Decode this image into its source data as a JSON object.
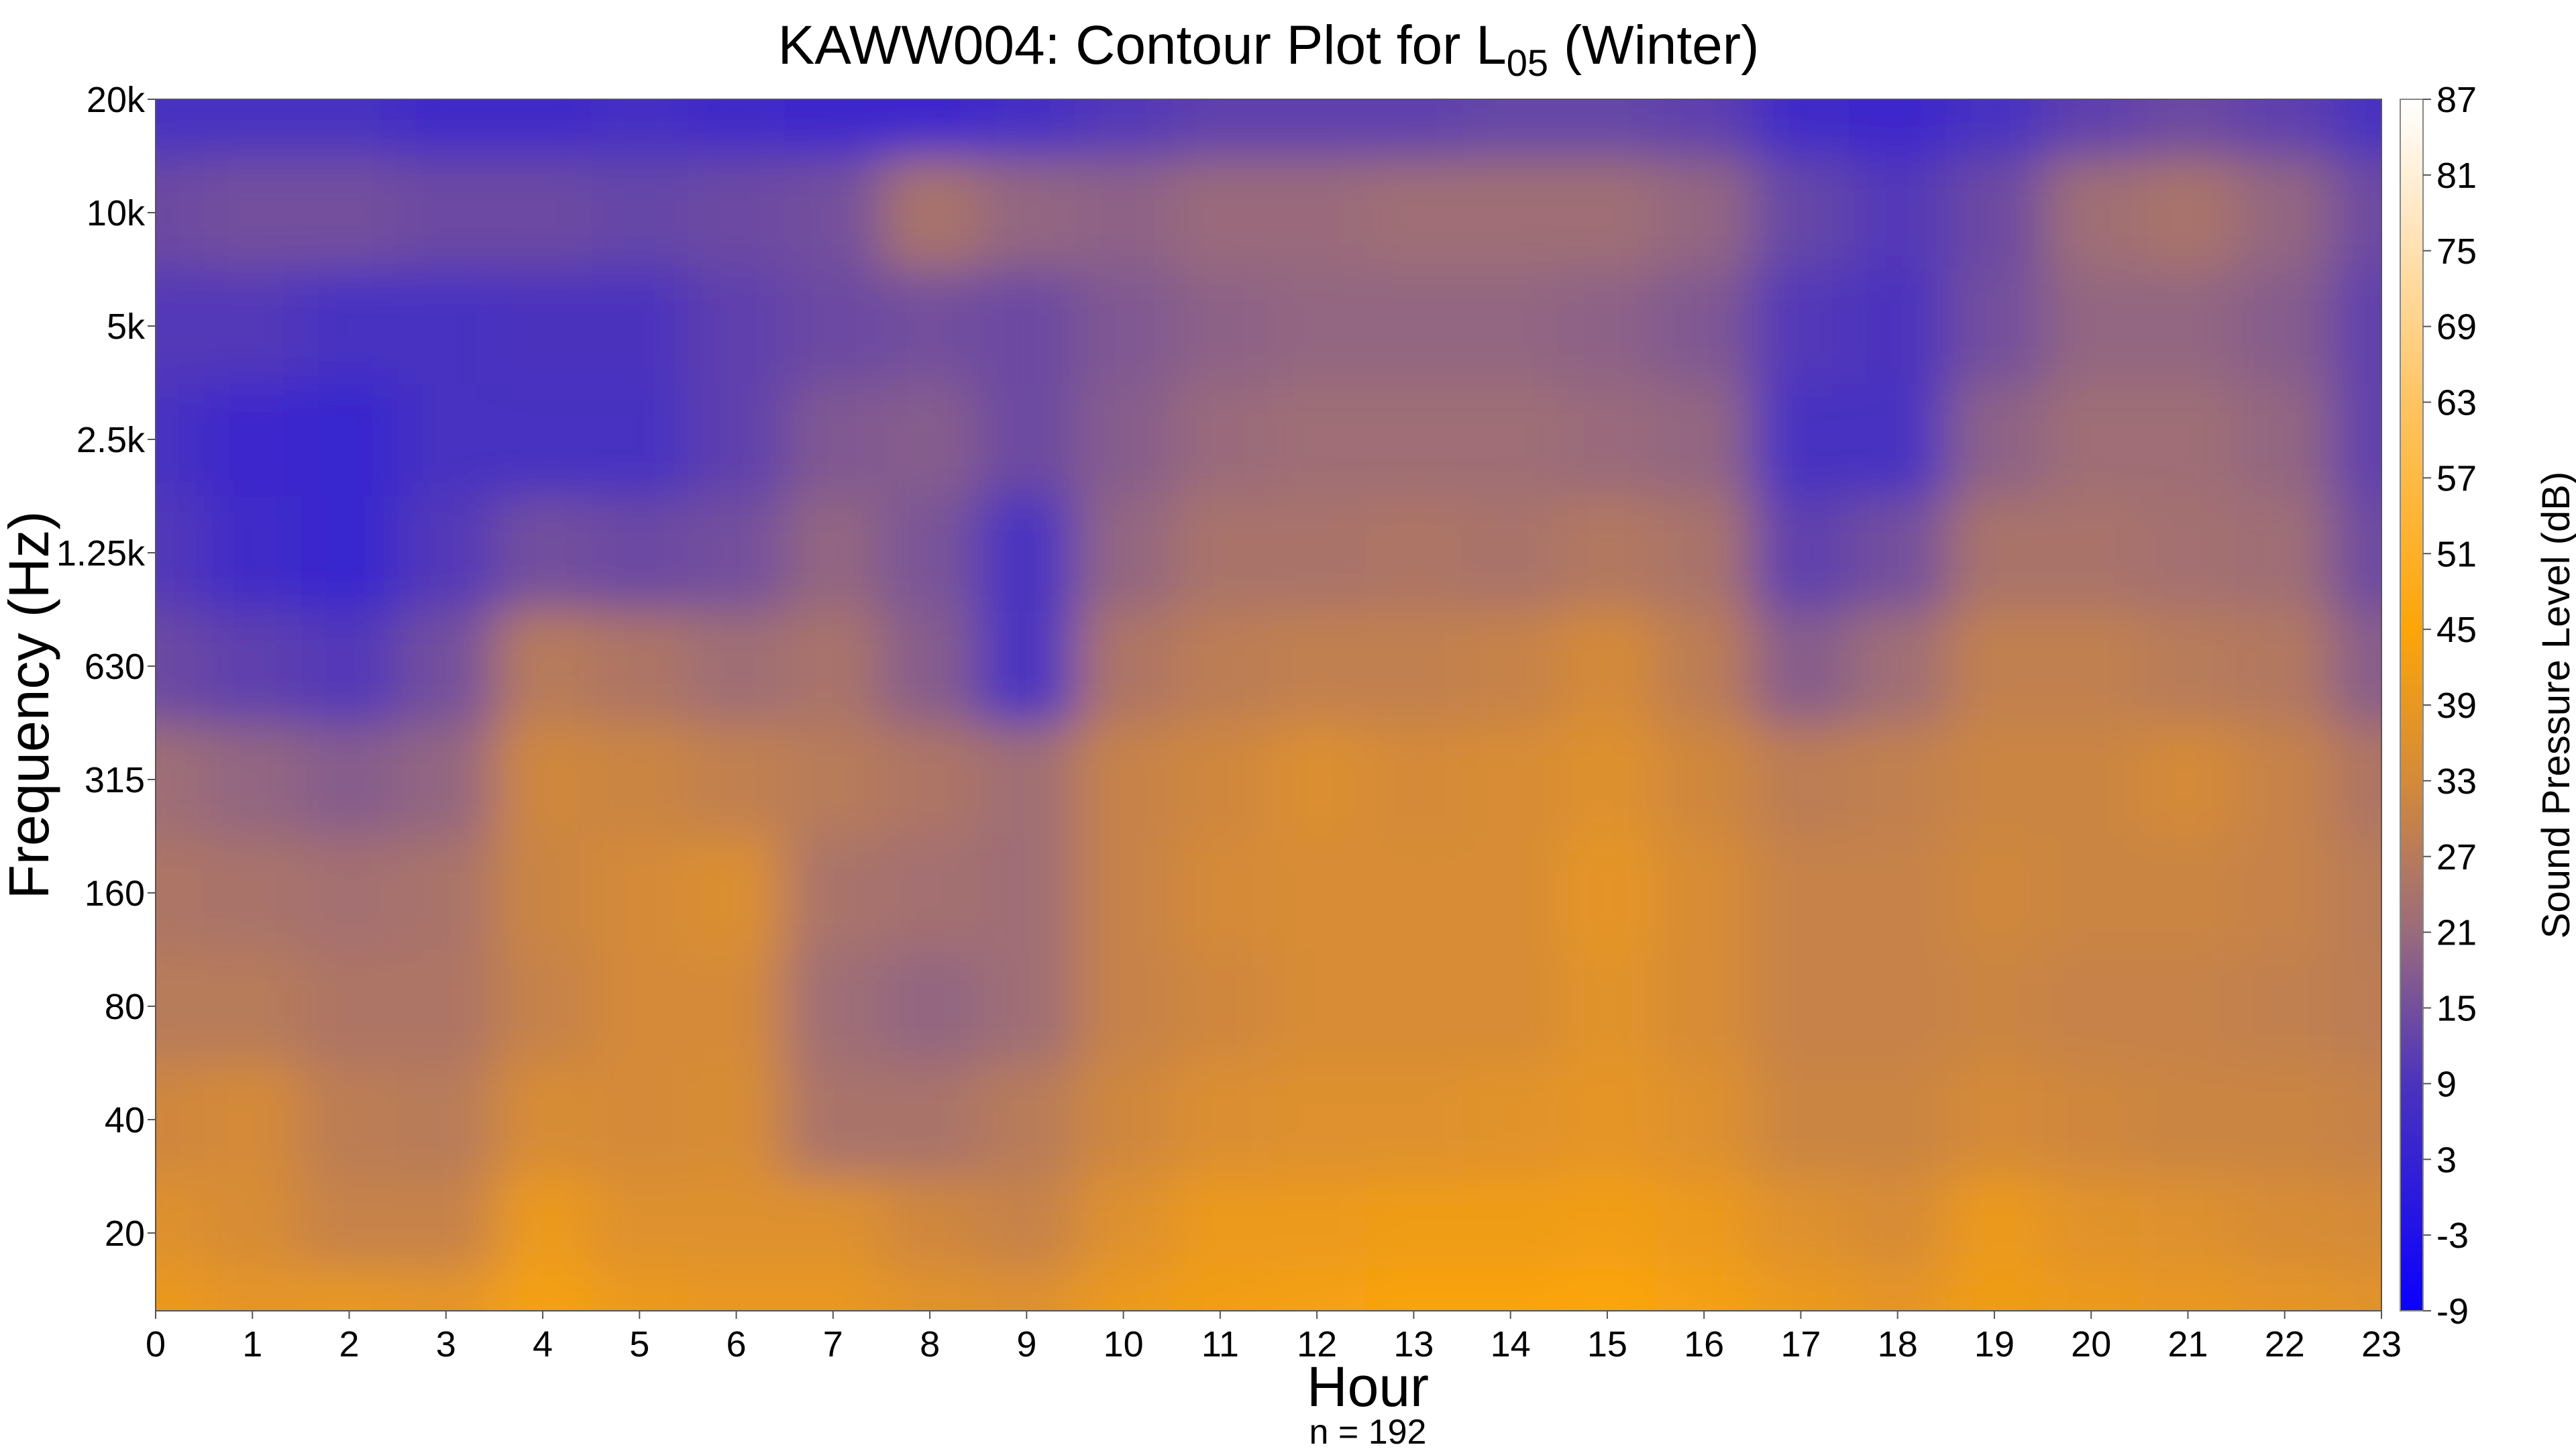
{
  "chart_data": {
    "type": "heatmap",
    "title": "KAWW004: Contour Plot for L",
    "title_subscript": "05",
    "title_suffix": " (Winter)",
    "xlabel": "Hour",
    "ylabel": "Frequency (Hz)",
    "note": "n = 192",
    "x": [
      0,
      1,
      2,
      3,
      4,
      5,
      6,
      7,
      8,
      9,
      10,
      11,
      12,
      13,
      14,
      15,
      16,
      17,
      18,
      19,
      20,
      21,
      22,
      23
    ],
    "xlim": [
      0,
      23
    ],
    "y_ticks": [
      {
        "label": "20",
        "value": 20
      },
      {
        "label": "40",
        "value": 40
      },
      {
        "label": "80",
        "value": 80
      },
      {
        "label": "160",
        "value": 160
      },
      {
        "label": "315",
        "value": 315
      },
      {
        "label": "630",
        "value": 630
      },
      {
        "label": "1.25k",
        "value": 1250
      },
      {
        "label": "2.5k",
        "value": 2500
      },
      {
        "label": "5k",
        "value": 5000
      },
      {
        "label": "10k",
        "value": 10000
      },
      {
        "label": "20k",
        "value": 20000
      }
    ],
    "y_scale": "log",
    "ylim": [
      10,
      20000
    ],
    "colorbar": {
      "label": "Sound Pressure Level (dB)",
      "min": -9,
      "max": 87,
      "ticks": [
        87,
        81,
        75,
        69,
        63,
        57,
        51,
        45,
        39,
        33,
        27,
        21,
        15,
        9,
        3,
        -3,
        -9
      ],
      "stops": [
        {
          "value": -9,
          "color": "#0a00ff"
        },
        {
          "value": 9,
          "color": "#4b33bd"
        },
        {
          "value": 21,
          "color": "#9a6b7c"
        },
        {
          "value": 33,
          "color": "#d48a38"
        },
        {
          "value": 45,
          "color": "#fca50a"
        },
        {
          "value": 63,
          "color": "#ffc462"
        },
        {
          "value": 75,
          "color": "#ffe0b0"
        },
        {
          "value": 87,
          "color": "#ffffff"
        }
      ]
    },
    "frequency_bands_hz": [
      12.5,
      20,
      40,
      80,
      160,
      315,
      630,
      1250,
      2500,
      5000,
      10000,
      20000
    ],
    "z_by_band": [
      [
        40,
        38,
        39,
        38,
        43,
        40,
        39,
        39,
        37,
        36,
        40,
        42,
        43,
        44,
        44,
        45,
        43,
        40,
        38,
        41,
        40,
        39,
        38,
        37
      ],
      [
        36,
        34,
        30,
        30,
        40,
        36,
        36,
        36,
        32,
        30,
        36,
        40,
        40,
        41,
        41,
        42,
        40,
        36,
        34,
        40,
        37,
        36,
        34,
        33
      ],
      [
        32,
        33,
        28,
        27,
        34,
        33,
        34,
        24,
        24,
        27,
        32,
        35,
        36,
        36,
        37,
        38,
        36,
        31,
        31,
        33,
        32,
        31,
        31,
        30
      ],
      [
        27,
        27,
        25,
        25,
        30,
        33,
        33,
        22,
        20,
        22,
        30,
        32,
        34,
        34,
        34,
        37,
        34,
        30,
        30,
        31,
        30,
        30,
        29,
        28
      ],
      [
        25,
        24,
        23,
        24,
        31,
        33,
        35,
        24,
        23,
        22,
        30,
        33,
        34,
        34,
        34,
        38,
        34,
        30,
        30,
        32,
        31,
        31,
        30,
        27
      ],
      [
        22,
        20,
        18,
        20,
        32,
        31,
        29,
        27,
        25,
        22,
        30,
        32,
        35,
        33,
        34,
        36,
        32,
        28,
        29,
        31,
        31,
        33,
        30,
        25
      ],
      [
        14,
        12,
        10,
        15,
        27,
        25,
        22,
        24,
        18,
        8,
        25,
        28,
        29,
        29,
        30,
        33,
        28,
        18,
        22,
        29,
        29,
        27,
        26,
        18
      ],
      [
        10,
        6,
        4,
        10,
        15,
        14,
        15,
        20,
        16,
        8,
        20,
        24,
        24,
        25,
        24,
        26,
        24,
        12,
        15,
        24,
        24,
        23,
        22,
        14
      ],
      [
        8,
        5,
        4,
        8,
        8,
        8,
        12,
        17,
        18,
        14,
        18,
        21,
        22,
        22,
        22,
        21,
        20,
        8,
        8,
        19,
        22,
        22,
        20,
        12
      ],
      [
        10,
        10,
        8,
        8,
        9,
        9,
        12,
        14,
        15,
        14,
        17,
        19,
        20,
        20,
        20,
        19,
        17,
        10,
        9,
        15,
        20,
        20,
        18,
        12
      ],
      [
        14,
        15,
        15,
        14,
        14,
        13,
        14,
        15,
        24,
        20,
        19,
        21,
        21,
        22,
        22,
        22,
        20,
        13,
        10,
        14,
        22,
        24,
        20,
        14
      ],
      [
        8,
        8,
        8,
        6,
        6,
        7,
        6,
        5,
        5,
        7,
        10,
        12,
        12,
        12,
        13,
        13,
        12,
        6,
        5,
        8,
        12,
        14,
        12,
        8
      ]
    ]
  }
}
